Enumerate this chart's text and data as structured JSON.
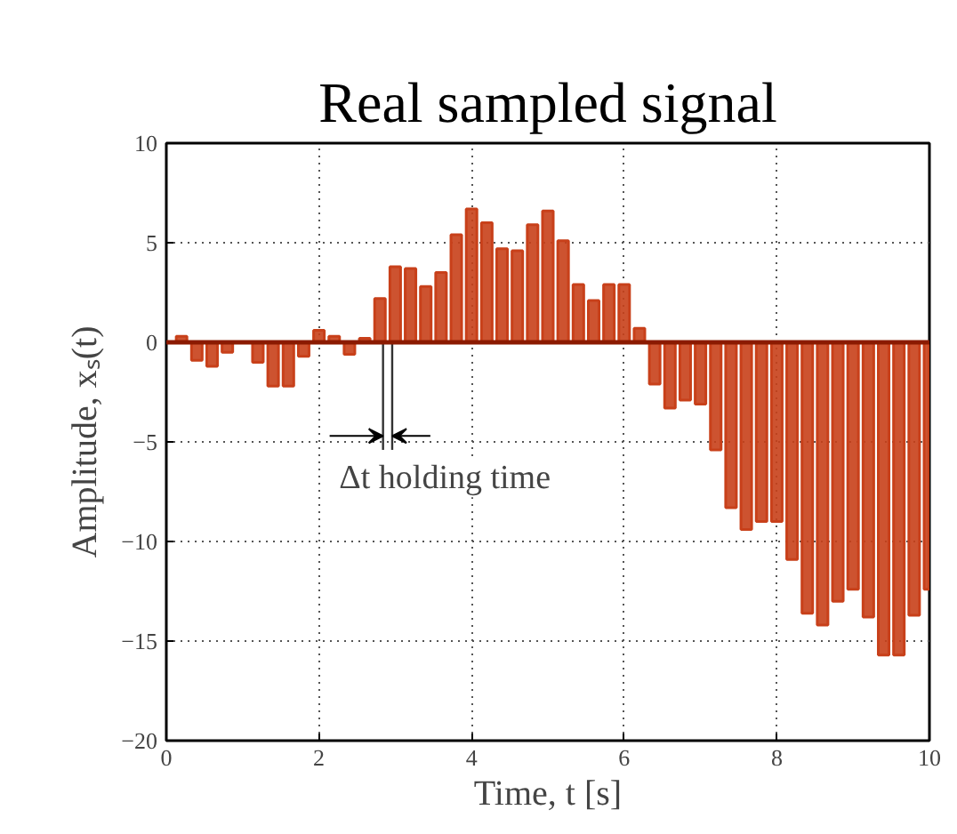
{
  "chart_data": {
    "type": "bar",
    "title": "Real sampled signal",
    "xlabel": "Time, t [s]",
    "ylabel": "Amplitude, xₛ(t)",
    "x": [
      0.2,
      0.4,
      0.6,
      0.8,
      1.0,
      1.2,
      1.4,
      1.6,
      1.8,
      2.0,
      2.2,
      2.4,
      2.6,
      2.8,
      3.0,
      3.2,
      3.4,
      3.6,
      3.8,
      4.0,
      4.2,
      4.4,
      4.6,
      4.8,
      5.0,
      5.2,
      5.4,
      5.6,
      5.8,
      6.0,
      6.2,
      6.4,
      6.6,
      6.8,
      7.0,
      7.2,
      7.4,
      7.6,
      7.8,
      8.0,
      8.2,
      8.4,
      8.6,
      8.8,
      9.0,
      9.2,
      9.4,
      9.6,
      9.8,
      10.0
    ],
    "series": [
      {
        "color": "#c8401a",
        "values": [
          0.3,
          -0.9,
          -1.2,
          -0.5,
          0,
          -1.0,
          -2.2,
          -2.2,
          -0.7,
          0.6,
          0.3,
          -0.6,
          0.2,
          2.2,
          3.8,
          3.7,
          2.8,
          3.5,
          5.4,
          6.7,
          6.0,
          4.7,
          4.6,
          5.9,
          6.6,
          5.1,
          2.9,
          2.1,
          2.9,
          2.9,
          0.7,
          -2.1,
          -3.3,
          -2.9,
          -3.1,
          -5.4,
          -8.3,
          -9.4,
          -9.0,
          -9.0,
          -10.9,
          -13.6,
          -14.2,
          -13.0,
          -12.4,
          -13.8,
          -15.7,
          -15.7,
          -13.7,
          -12.4
        ]
      }
    ],
    "xlim": [
      0,
      10
    ],
    "ylim": [
      -20,
      10
    ],
    "xticks": [
      0,
      2,
      4,
      6,
      8,
      10
    ],
    "yticks": [
      -20,
      -15,
      -10,
      -5,
      0,
      5,
      10
    ],
    "grid": true,
    "ref_lines": [
      {
        "axis": "y",
        "value": 0,
        "color": "#8b1a00"
      }
    ],
    "annotations": [
      {
        "text": "Δt holding time",
        "x": 2.9,
        "y": 0
      }
    ]
  }
}
